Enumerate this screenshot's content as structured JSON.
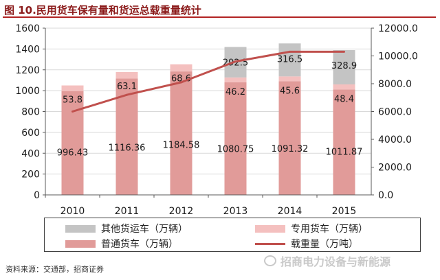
{
  "header": {
    "title": "图 10.民用货车保有量和货运总载重量统计"
  },
  "chart_data": {
    "type": "bar",
    "categories": [
      "2010",
      "2011",
      "2012",
      "2013",
      "2014",
      "2015"
    ],
    "series": [
      {
        "name": "普通货车（万辆）",
        "kind": "stack",
        "axis": "left",
        "color": "#e19b99",
        "values": [
          996.43,
          1116.36,
          1184.58,
          1080.75,
          1091.32,
          1011.87
        ],
        "labels": [
          "996.43",
          "1116.36",
          "1184.58",
          "1080.75",
          "1091.32",
          "1011.87"
        ]
      },
      {
        "name": "专用货车（万辆）",
        "kind": "stack",
        "axis": "left",
        "color": "#f4c0bf",
        "values": [
          53.8,
          63.1,
          68.6,
          46.2,
          45.6,
          48.4
        ],
        "labels": [
          "53.8",
          "63.1",
          "68.6",
          "46.2",
          "45.6",
          "48.4"
        ]
      },
      {
        "name": "其他货运车（万辆）",
        "kind": "stack",
        "axis": "left",
        "color": "#c4c4c4",
        "values": [
          0,
          0,
          0,
          292.5,
          316.5,
          328.9
        ],
        "labels": [
          "",
          "",
          "",
          "292.5",
          "316.5",
          "328.9"
        ]
      },
      {
        "name": "载重量（万吨）",
        "kind": "line",
        "axis": "right",
        "color": "#c0504d",
        "values": [
          6000,
          7200,
          8100,
          9600,
          10300,
          10300
        ]
      }
    ],
    "left_axis": {
      "ylim": [
        0,
        1600
      ],
      "ticks": [
        "0",
        "200",
        "400",
        "600",
        "800",
        "1000",
        "1200",
        "1400",
        "1600"
      ]
    },
    "right_axis": {
      "ylim": [
        0,
        12000
      ],
      "ticks": [
        "0.0",
        "2000.0",
        "4000.0",
        "6000.0",
        "8000.0",
        "10000.0",
        "12000.0"
      ]
    },
    "grid": true,
    "legend_position": "bottom"
  },
  "legend": {
    "other": "其他货运车（万辆）",
    "special": "专用货车（万辆）",
    "ordinary": "普通货车（万辆）",
    "load": "载重量（万吨）"
  },
  "footer": {
    "source": "资料来源：交通部，招商证券"
  },
  "watermark": {
    "text": "招商电力设备与新能源"
  },
  "colors": {
    "ordinary": "#e19b99",
    "special": "#f4c0bf",
    "other": "#c4c4c4",
    "line": "#c0504d",
    "title": "#8b1a1a"
  }
}
